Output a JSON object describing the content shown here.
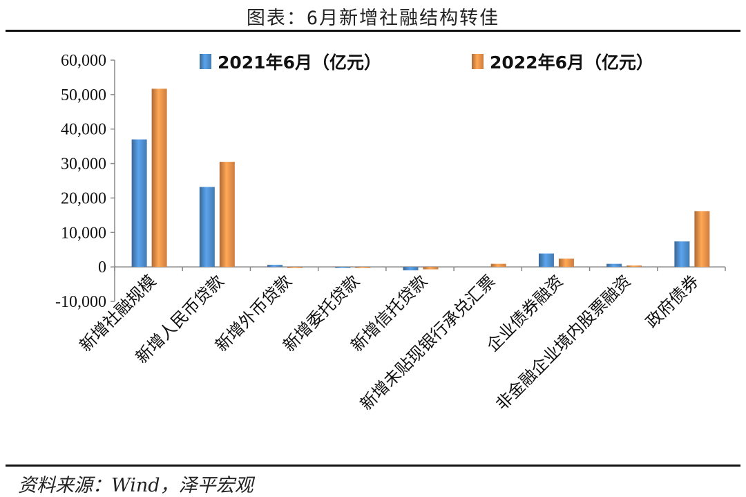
{
  "header": {
    "title": "图表：6月新增社融结构转佳"
  },
  "footer": {
    "source": "资料来源：Wind，泽平宏观"
  },
  "chart_data": {
    "type": "bar",
    "categories": [
      "新增社融规模",
      "新增人民币贷款",
      "新增外币贷款",
      "新增委托贷款",
      "新增信托贷款",
      "新增未贴现银行承兑汇票",
      "企业债券融资",
      "非金融企业境内股票融资",
      "政府债券"
    ],
    "series": [
      {
        "name": "2021年6月（亿元）",
        "color": "#4f8fcf",
        "values": [
          37000,
          23200,
          600,
          -300,
          -1000,
          0,
          3900,
          900,
          7400
        ]
      },
      {
        "name": "2022年6月（亿元）",
        "color": "#f0924a",
        "values": [
          51700,
          30500,
          -200,
          -300,
          -700,
          900,
          2400,
          400,
          16200
        ]
      }
    ],
    "ylim": [
      -10000,
      60000
    ],
    "yticks": [
      "60,000",
      "50,000",
      "40,000",
      "30,000",
      "20,000",
      "10,000",
      "0",
      "-10,000"
    ],
    "ytick_values": [
      60000,
      50000,
      40000,
      30000,
      20000,
      10000,
      0,
      -10000
    ],
    "legend_position": "top",
    "grid": false
  }
}
